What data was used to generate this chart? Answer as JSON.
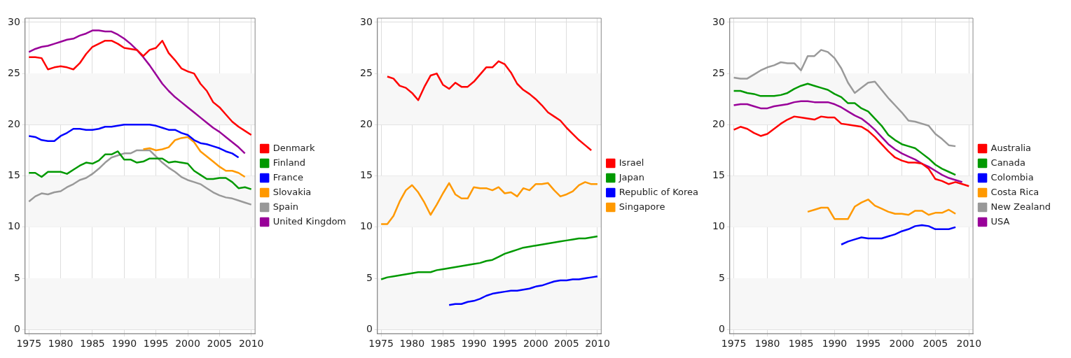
{
  "chart_data": [
    {
      "type": "line",
      "xlim": [
        1974.4,
        2010.6
      ],
      "ylim": [
        -0.4,
        30.4
      ],
      "xticks": [
        1975,
        1980,
        1985,
        1990,
        1995,
        2000,
        2005,
        2010
      ],
      "yticks": [
        0,
        5,
        10,
        15,
        20,
        25,
        30
      ],
      "grid": true,
      "legend": "right",
      "marker": "none",
      "line_style": "solid",
      "bands": [
        {
          "axis": "y",
          "from": 0,
          "to": 5,
          "color": "#f7f7f7"
        },
        {
          "axis": "y",
          "from": 10,
          "to": 15,
          "color": "#f7f7f7"
        },
        {
          "axis": "y",
          "from": 20,
          "to": 25,
          "color": "#f7f7f7"
        }
      ],
      "series": [
        {
          "name": "Denmark",
          "color": "#ff0000",
          "x": [
            1975,
            1976,
            1977,
            1978,
            1979,
            1980,
            1981,
            1982,
            1983,
            1984,
            1985,
            1986,
            1987,
            1988,
            1989,
            1990,
            1991,
            1992,
            1993,
            1994,
            1995,
            1996,
            1997,
            1998,
            1999,
            2000,
            2001,
            2002,
            2003,
            2004,
            2005,
            2006,
            2007,
            2008,
            2009,
            2010
          ],
          "values": [
            26.6,
            26.6,
            26.5,
            25.4,
            25.6,
            25.7,
            25.6,
            25.4,
            26.0,
            26.9,
            27.6,
            27.9,
            28.2,
            28.2,
            27.9,
            27.5,
            27.4,
            27.3,
            26.7,
            27.3,
            27.5,
            28.2,
            27.0,
            26.3,
            25.5,
            25.2,
            25.0,
            24.0,
            23.3,
            22.2,
            21.7,
            21.0,
            20.3,
            19.8,
            19.4,
            19.0
          ]
        },
        {
          "name": "Finland",
          "color": "#009900",
          "x": [
            1975,
            1976,
            1977,
            1978,
            1979,
            1980,
            1981,
            1982,
            1983,
            1984,
            1985,
            1986,
            1987,
            1988,
            1989,
            1990,
            1991,
            1992,
            1993,
            1994,
            1995,
            1996,
            1997,
            1998,
            1999,
            2000,
            2001,
            2002,
            2003,
            2004,
            2005,
            2006,
            2007,
            2008,
            2009,
            2010
          ],
          "values": [
            15.3,
            15.3,
            14.9,
            15.4,
            15.4,
            15.4,
            15.2,
            15.6,
            16.0,
            16.3,
            16.2,
            16.5,
            17.1,
            17.1,
            17.4,
            16.6,
            16.6,
            16.3,
            16.4,
            16.7,
            16.7,
            16.7,
            16.3,
            16.4,
            16.3,
            16.2,
            15.5,
            15.1,
            14.7,
            14.7,
            14.8,
            14.8,
            14.4,
            13.8,
            13.9,
            13.7
          ]
        },
        {
          "name": "France",
          "color": "#0000ff",
          "x": [
            1975,
            1976,
            1977,
            1978,
            1979,
            1980,
            1981,
            1982,
            1983,
            1984,
            1985,
            1986,
            1987,
            1988,
            1989,
            1990,
            1991,
            1992,
            1993,
            1994,
            1995,
            1996,
            1997,
            1998,
            1999,
            2000,
            2001,
            2002,
            2003,
            2004,
            2005,
            2006,
            2007,
            2008
          ],
          "values": [
            18.9,
            18.8,
            18.5,
            18.4,
            18.4,
            18.9,
            19.2,
            19.6,
            19.6,
            19.5,
            19.5,
            19.6,
            19.8,
            19.8,
            19.9,
            20.0,
            20.0,
            20.0,
            20.0,
            20.0,
            19.9,
            19.7,
            19.5,
            19.5,
            19.2,
            19.0,
            18.5,
            18.2,
            18.1,
            17.9,
            17.7,
            17.4,
            17.2,
            16.8
          ]
        },
        {
          "name": "Slovakia",
          "color": "#ff9900",
          "x": [
            1993,
            1994,
            1995,
            1996,
            1997,
            1998,
            1999,
            2000,
            2001,
            2002,
            2003,
            2004,
            2005,
            2006,
            2007,
            2008,
            2009
          ],
          "values": [
            17.6,
            17.7,
            17.5,
            17.6,
            17.8,
            18.5,
            18.7,
            18.8,
            18.3,
            17.4,
            16.9,
            16.4,
            15.9,
            15.5,
            15.5,
            15.3,
            14.9
          ]
        },
        {
          "name": "Spain",
          "color": "#999999",
          "x": [
            1975,
            1976,
            1977,
            1978,
            1979,
            1980,
            1981,
            1982,
            1983,
            1984,
            1985,
            1986,
            1987,
            1988,
            1989,
            1990,
            1991,
            1992,
            1993,
            1994,
            1995,
            1996,
            1997,
            1998,
            1999,
            2000,
            2001,
            2002,
            2003,
            2004,
            2005,
            2006,
            2007,
            2008,
            2009,
            2010
          ],
          "values": [
            12.5,
            13.0,
            13.3,
            13.2,
            13.4,
            13.5,
            13.9,
            14.2,
            14.6,
            14.8,
            15.2,
            15.7,
            16.3,
            16.8,
            17.0,
            17.2,
            17.2,
            17.5,
            17.5,
            17.5,
            16.9,
            16.3,
            15.8,
            15.4,
            14.9,
            14.6,
            14.4,
            14.2,
            13.8,
            13.4,
            13.1,
            12.9,
            12.8,
            12.6,
            12.4,
            12.2
          ]
        },
        {
          "name": "United Kingdom",
          "color": "#990099",
          "x": [
            1975,
            1976,
            1977,
            1978,
            1979,
            1980,
            1981,
            1982,
            1983,
            1984,
            1985,
            1986,
            1987,
            1988,
            1989,
            1990,
            1991,
            1992,
            1993,
            1994,
            1995,
            1996,
            1997,
            1998,
            1999,
            2000,
            2001,
            2002,
            2003,
            2004,
            2005,
            2006,
            2007,
            2008,
            2009
          ],
          "values": [
            27.1,
            27.4,
            27.6,
            27.7,
            27.9,
            28.1,
            28.3,
            28.4,
            28.7,
            28.9,
            29.2,
            29.2,
            29.1,
            29.1,
            28.8,
            28.4,
            27.9,
            27.3,
            26.6,
            25.8,
            24.9,
            24.0,
            23.3,
            22.7,
            22.2,
            21.7,
            21.2,
            20.7,
            20.2,
            19.7,
            19.3,
            18.8,
            18.3,
            17.8,
            17.2
          ]
        }
      ]
    },
    {
      "type": "line",
      "xlim": [
        1974.4,
        2010.6
      ],
      "ylim": [
        -0.4,
        30.4
      ],
      "xticks": [
        1975,
        1980,
        1985,
        1990,
        1995,
        2000,
        2005,
        2010
      ],
      "yticks": [
        0,
        5,
        10,
        15,
        20,
        25,
        30
      ],
      "grid": true,
      "legend": "right",
      "marker": "none",
      "line_style": "solid",
      "bands": [
        {
          "axis": "y",
          "from": 0,
          "to": 5,
          "color": "#f7f7f7"
        },
        {
          "axis": "y",
          "from": 10,
          "to": 15,
          "color": "#f7f7f7"
        },
        {
          "axis": "y",
          "from": 20,
          "to": 25,
          "color": "#f7f7f7"
        }
      ],
      "series": [
        {
          "name": "Israel",
          "color": "#ff0000",
          "x": [
            1976,
            1977,
            1978,
            1979,
            1980,
            1981,
            1982,
            1983,
            1984,
            1985,
            1986,
            1987,
            1988,
            1989,
            1990,
            1991,
            1992,
            1993,
            1994,
            1995,
            1996,
            1997,
            1998,
            1999,
            2000,
            2001,
            2002,
            2003,
            2004,
            2005,
            2006,
            2007,
            2008,
            2009
          ],
          "values": [
            24.7,
            24.5,
            23.8,
            23.6,
            23.1,
            22.4,
            23.7,
            24.8,
            25.0,
            23.9,
            23.5,
            24.1,
            23.7,
            23.7,
            24.2,
            24.9,
            25.6,
            25.6,
            26.2,
            25.9,
            25.1,
            24.0,
            23.4,
            23.0,
            22.5,
            21.9,
            21.2,
            20.8,
            20.4,
            19.7,
            19.1,
            18.5,
            18.0,
            17.5
          ]
        },
        {
          "name": "Japan",
          "color": "#009900",
          "x": [
            1975,
            1976,
            1977,
            1978,
            1979,
            1980,
            1981,
            1982,
            1983,
            1984,
            1985,
            1986,
            1987,
            1988,
            1989,
            1990,
            1991,
            1992,
            1993,
            1994,
            1995,
            1996,
            1997,
            1998,
            1999,
            2000,
            2001,
            2002,
            2003,
            2004,
            2005,
            2006,
            2007,
            2008,
            2009,
            2010
          ],
          "values": [
            4.9,
            5.1,
            5.2,
            5.3,
            5.4,
            5.5,
            5.6,
            5.6,
            5.6,
            5.8,
            5.9,
            6.0,
            6.1,
            6.2,
            6.3,
            6.4,
            6.5,
            6.7,
            6.8,
            7.1,
            7.4,
            7.6,
            7.8,
            8.0,
            8.1,
            8.2,
            8.3,
            8.4,
            8.5,
            8.6,
            8.7,
            8.8,
            8.9,
            8.9,
            9.0,
            9.1
          ]
        },
        {
          "name": "Republic of Korea",
          "color": "#0000ff",
          "x": [
            1986,
            1987,
            1988,
            1989,
            1990,
            1991,
            1992,
            1993,
            1994,
            1995,
            1996,
            1997,
            1998,
            1999,
            2000,
            2001,
            2002,
            2003,
            2004,
            2005,
            2006,
            2007,
            2008,
            2009,
            2010
          ],
          "values": [
            2.4,
            2.5,
            2.5,
            2.7,
            2.8,
            3.0,
            3.3,
            3.5,
            3.6,
            3.7,
            3.8,
            3.8,
            3.9,
            4.0,
            4.2,
            4.3,
            4.5,
            4.7,
            4.8,
            4.8,
            4.9,
            4.9,
            5.0,
            5.1,
            5.2
          ]
        },
        {
          "name": "Singapore",
          "color": "#ff9900",
          "x": [
            1975,
            1976,
            1977,
            1978,
            1979,
            1980,
            1981,
            1982,
            1983,
            1984,
            1985,
            1986,
            1987,
            1988,
            1989,
            1990,
            1991,
            1992,
            1993,
            1994,
            1995,
            1996,
            1997,
            1998,
            1999,
            2000,
            2001,
            2002,
            2003,
            2004,
            2005,
            2006,
            2007,
            2008,
            2009,
            2010
          ],
          "values": [
            10.3,
            10.3,
            11.1,
            12.5,
            13.6,
            14.1,
            13.4,
            12.4,
            11.2,
            12.2,
            13.3,
            14.3,
            13.2,
            12.8,
            12.8,
            13.9,
            13.8,
            13.8,
            13.6,
            13.9,
            13.3,
            13.4,
            13.0,
            13.8,
            13.6,
            14.2,
            14.2,
            14.3,
            13.6,
            13.0,
            13.2,
            13.5,
            14.1,
            14.4,
            14.2,
            14.2
          ]
        }
      ]
    },
    {
      "type": "line",
      "xlim": [
        1974.4,
        2010.6
      ],
      "ylim": [
        -0.4,
        30.4
      ],
      "xticks": [
        1975,
        1980,
        1985,
        1990,
        1995,
        2000,
        2005,
        2010
      ],
      "yticks": [
        0,
        5,
        10,
        15,
        20,
        25,
        30
      ],
      "grid": true,
      "legend": "right",
      "marker": "none",
      "line_style": "solid",
      "bands": [
        {
          "axis": "y",
          "from": 0,
          "to": 5,
          "color": "#f7f7f7"
        },
        {
          "axis": "y",
          "from": 10,
          "to": 15,
          "color": "#f7f7f7"
        },
        {
          "axis": "y",
          "from": 20,
          "to": 25,
          "color": "#f7f7f7"
        }
      ],
      "series": [
        {
          "name": "Australia",
          "color": "#ff0000",
          "x": [
            1975,
            1976,
            1977,
            1978,
            1979,
            1980,
            1981,
            1982,
            1983,
            1984,
            1985,
            1986,
            1987,
            1988,
            1989,
            1990,
            1991,
            1992,
            1993,
            1994,
            1995,
            1996,
            1997,
            1998,
            1999,
            2000,
            2001,
            2002,
            2003,
            2004,
            2005,
            2006,
            2007,
            2008,
            2009,
            2010
          ],
          "values": [
            19.5,
            19.8,
            19.6,
            19.2,
            18.9,
            19.1,
            19.6,
            20.1,
            20.5,
            20.8,
            20.7,
            20.6,
            20.5,
            20.8,
            20.7,
            20.7,
            20.1,
            20.0,
            19.9,
            19.8,
            19.4,
            18.8,
            18.1,
            17.4,
            16.8,
            16.5,
            16.3,
            16.3,
            16.2,
            15.7,
            14.7,
            14.5,
            14.2,
            14.4,
            14.2,
            14.0
          ]
        },
        {
          "name": "Canada",
          "color": "#009900",
          "x": [
            1975,
            1976,
            1977,
            1978,
            1979,
            1980,
            1981,
            1982,
            1983,
            1984,
            1985,
            1986,
            1987,
            1988,
            1989,
            1990,
            1991,
            1992,
            1993,
            1994,
            1995,
            1996,
            1997,
            1998,
            1999,
            2000,
            2001,
            2002,
            2003,
            2004,
            2005,
            2006,
            2007,
            2008
          ],
          "values": [
            23.3,
            23.3,
            23.1,
            23.0,
            22.8,
            22.8,
            22.8,
            22.9,
            23.1,
            23.5,
            23.8,
            24.0,
            23.8,
            23.6,
            23.4,
            23.0,
            22.7,
            22.1,
            22.1,
            21.6,
            21.3,
            20.6,
            19.9,
            19.0,
            18.5,
            18.1,
            17.9,
            17.7,
            17.2,
            16.7,
            16.1,
            15.7,
            15.4,
            15.1
          ]
        },
        {
          "name": "Colombia",
          "color": "#0000ff",
          "x": [
            1991,
            1992,
            1993,
            1994,
            1995,
            1996,
            1997,
            1998,
            1999,
            2000,
            2001,
            2002,
            2003,
            2004,
            2005,
            2006,
            2007,
            2008
          ],
          "values": [
            8.3,
            8.6,
            8.8,
            9.0,
            8.9,
            8.9,
            8.9,
            9.1,
            9.3,
            9.6,
            9.8,
            10.1,
            10.2,
            10.1,
            9.8,
            9.8,
            9.8,
            10.0
          ]
        },
        {
          "name": "Costa Rica",
          "color": "#ff9900",
          "x": [
            1986,
            1987,
            1988,
            1989,
            1990,
            1991,
            1992,
            1993,
            1994,
            1995,
            1996,
            1997,
            1998,
            1999,
            2000,
            2001,
            2002,
            2003,
            2004,
            2005,
            2006,
            2007,
            2008
          ],
          "values": [
            11.5,
            11.7,
            11.9,
            11.9,
            10.8,
            10.8,
            10.8,
            12.0,
            12.4,
            12.7,
            12.1,
            11.8,
            11.5,
            11.3,
            11.3,
            11.2,
            11.6,
            11.6,
            11.2,
            11.4,
            11.4,
            11.7,
            11.3
          ]
        },
        {
          "name": "New Zealand",
          "color": "#999999",
          "x": [
            1975,
            1976,
            1977,
            1978,
            1979,
            1980,
            1981,
            1982,
            1983,
            1984,
            1985,
            1986,
            1987,
            1988,
            1989,
            1990,
            1991,
            1992,
            1993,
            1994,
            1995,
            1996,
            1997,
            1998,
            1999,
            2000,
            2001,
            2002,
            2003,
            2004,
            2005,
            2006,
            2007,
            2008
          ],
          "values": [
            24.6,
            24.5,
            24.5,
            24.9,
            25.3,
            25.6,
            25.8,
            26.1,
            26.0,
            26.0,
            25.3,
            26.7,
            26.7,
            27.3,
            27.1,
            26.5,
            25.5,
            24.1,
            23.1,
            23.6,
            24.1,
            24.2,
            23.4,
            22.6,
            21.9,
            21.2,
            20.4,
            20.3,
            20.1,
            19.9,
            19.1,
            18.6,
            18.0,
            17.9
          ]
        },
        {
          "name": "USA",
          "color": "#990099",
          "x": [
            1975,
            1976,
            1977,
            1978,
            1979,
            1980,
            1981,
            1982,
            1983,
            1984,
            1985,
            1986,
            1987,
            1988,
            1989,
            1990,
            1991,
            1992,
            1993,
            1994,
            1995,
            1996,
            1997,
            1998,
            1999,
            2000,
            2001,
            2002,
            2003,
            2004,
            2005,
            2006,
            2007,
            2008,
            2009
          ],
          "values": [
            21.9,
            22.0,
            22.0,
            21.8,
            21.6,
            21.6,
            21.8,
            21.9,
            22.0,
            22.2,
            22.3,
            22.3,
            22.2,
            22.2,
            22.2,
            22.0,
            21.7,
            21.3,
            20.9,
            20.6,
            20.1,
            19.5,
            18.8,
            18.1,
            17.6,
            17.2,
            16.9,
            16.6,
            16.2,
            15.9,
            15.5,
            15.1,
            14.8,
            14.6,
            14.4
          ]
        }
      ]
    }
  ]
}
